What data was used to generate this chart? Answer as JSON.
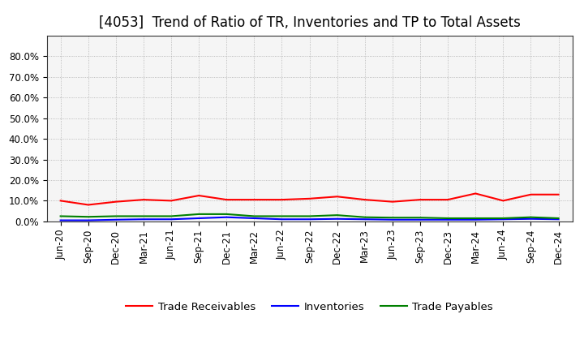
{
  "title": "[4053]  Trend of Ratio of TR, Inventories and TP to Total Assets",
  "labels": [
    "Jun-20",
    "Sep-20",
    "Dec-20",
    "Mar-21",
    "Jun-21",
    "Sep-21",
    "Dec-21",
    "Mar-22",
    "Jun-22",
    "Sep-22",
    "Dec-22",
    "Mar-23",
    "Jun-23",
    "Sep-23",
    "Dec-23",
    "Mar-24",
    "Jun-24",
    "Sep-24",
    "Dec-24"
  ],
  "trade_receivables": [
    10.0,
    8.0,
    9.5,
    10.5,
    10.0,
    12.5,
    10.5,
    10.5,
    10.5,
    11.0,
    12.0,
    10.5,
    9.5,
    10.5,
    10.5,
    13.5,
    10.0,
    13.0,
    13.0
  ],
  "inventories": [
    0.5,
    0.5,
    0.8,
    1.0,
    1.0,
    1.5,
    2.0,
    1.5,
    1.0,
    1.0,
    1.2,
    1.0,
    0.8,
    0.8,
    0.8,
    0.8,
    1.0,
    1.2,
    1.0
  ],
  "trade_payables": [
    2.5,
    2.2,
    2.5,
    2.5,
    2.5,
    3.5,
    3.5,
    2.5,
    2.5,
    2.5,
    3.0,
    2.0,
    1.8,
    1.8,
    1.5,
    1.5,
    1.5,
    2.0,
    1.5
  ],
  "tr_color": "#ff0000",
  "inv_color": "#0000ff",
  "tp_color": "#008000",
  "ylim_min": 0,
  "ylim_max": 90,
  "yticks": [
    0,
    10,
    20,
    30,
    40,
    50,
    60,
    70,
    80
  ],
  "background_color": "#ffffff",
  "plot_bg_color": "#f5f5f5",
  "grid_color": "#999999",
  "legend_tr": "Trade Receivables",
  "legend_inv": "Inventories",
  "legend_tp": "Trade Payables",
  "title_fontsize": 12,
  "axis_fontsize": 8.5,
  "legend_fontsize": 9.5,
  "line_width": 1.5
}
